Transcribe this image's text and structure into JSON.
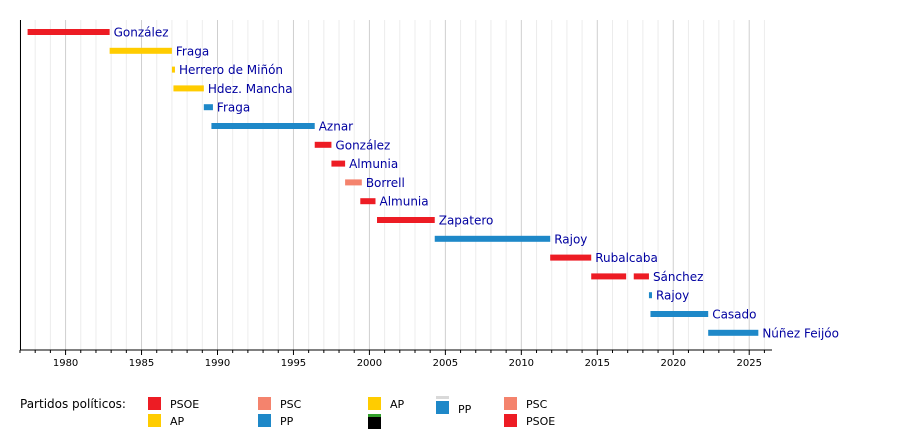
{
  "chart_data": {
    "type": "bar",
    "orientation": "horizontal-timeline",
    "xlim": [
      1977.0,
      2026.5
    ],
    "grid": true,
    "x_ticks": [
      1980,
      1985,
      1990,
      1995,
      2000,
      2005,
      2010,
      2015,
      2020,
      2025
    ],
    "parties": {
      "PSOE": "#ed1c24",
      "PSC": "#f4836d",
      "AP": "#ffcc00",
      "PP": "#1e88c8"
    },
    "bars": [
      {
        "label": "González",
        "segments": [
          {
            "start": 1977.5,
            "end": 1982.9,
            "party": "PSOE"
          }
        ]
      },
      {
        "label": "Fraga",
        "segments": [
          {
            "start": 1982.9,
            "end": 1987.0,
            "party": "AP"
          }
        ]
      },
      {
        "label": "Herrero de Miñón",
        "segments": [
          {
            "start": 1987.0,
            "end": 1987.2,
            "party": "AP"
          }
        ]
      },
      {
        "label": "Hdez. Mancha",
        "segments": [
          {
            "start": 1987.1,
            "end": 1989.1,
            "party": "AP"
          }
        ]
      },
      {
        "label": "Fraga",
        "segments": [
          {
            "start": 1989.1,
            "end": 1989.7,
            "party": "PP"
          }
        ]
      },
      {
        "label": "Aznar",
        "segments": [
          {
            "start": 1989.6,
            "end": 1996.4,
            "party": "PP"
          }
        ]
      },
      {
        "label": "González",
        "segments": [
          {
            "start": 1996.4,
            "end": 1997.5,
            "party": "PSOE"
          }
        ]
      },
      {
        "label": "Almunia",
        "segments": [
          {
            "start": 1997.5,
            "end": 1998.4,
            "party": "PSOE"
          }
        ]
      },
      {
        "label": "Borrell",
        "segments": [
          {
            "start": 1998.4,
            "end": 1999.5,
            "party": "PSC"
          }
        ]
      },
      {
        "label": "Almunia",
        "segments": [
          {
            "start": 1999.4,
            "end": 2000.4,
            "party": "PSOE"
          }
        ]
      },
      {
        "label": "Zapatero",
        "segments": [
          {
            "start": 2000.5,
            "end": 2004.3,
            "party": "PSOE"
          }
        ]
      },
      {
        "label": "Rajoy",
        "segments": [
          {
            "start": 2004.3,
            "end": 2011.9,
            "party": "PP"
          }
        ]
      },
      {
        "label": "Rubalcaba",
        "segments": [
          {
            "start": 2011.9,
            "end": 2014.6,
            "party": "PSOE"
          }
        ]
      },
      {
        "label": "Sánchez",
        "segments": [
          {
            "start": 2014.6,
            "end": 2016.9,
            "party": "PSOE"
          },
          {
            "start": 2017.4,
            "end": 2018.4,
            "party": "PSOE"
          }
        ]
      },
      {
        "label": "Rajoy",
        "segments": [
          {
            "start": 2018.4,
            "end": 2018.6,
            "party": "PP"
          }
        ]
      },
      {
        "label": "Casado",
        "segments": [
          {
            "start": 2018.5,
            "end": 2022.3,
            "party": "PP"
          }
        ]
      },
      {
        "label": "Núñez Feijóo",
        "segments": [
          {
            "start": 2022.3,
            "end": 2025.6,
            "party": "PP"
          }
        ]
      }
    ],
    "legend": {
      "title": "Partidos políticos:",
      "items": [
        {
          "label": "PSOE",
          "color": "#ed1c24",
          "style": "plain"
        },
        {
          "label": "AP",
          "color": "#ffcc00",
          "style": "plain"
        },
        {
          "label": "PSC",
          "color": "#f4836d",
          "style": "plain"
        },
        {
          "label": "PP",
          "color": "#1e88c8",
          "style": "plain"
        },
        {
          "label": "AP",
          "color": "#ffcc00",
          "style": "plain"
        },
        {
          "label": "",
          "color": "#000000",
          "style": "black-green"
        },
        {
          "label": "PP",
          "color": "#1e88c8",
          "style": "grey-top"
        },
        {
          "label": "PSC",
          "color": "#f4836d",
          "style": "plain"
        },
        {
          "label": "PSOE",
          "color": "#ed1c24",
          "style": "plain"
        }
      ]
    }
  }
}
